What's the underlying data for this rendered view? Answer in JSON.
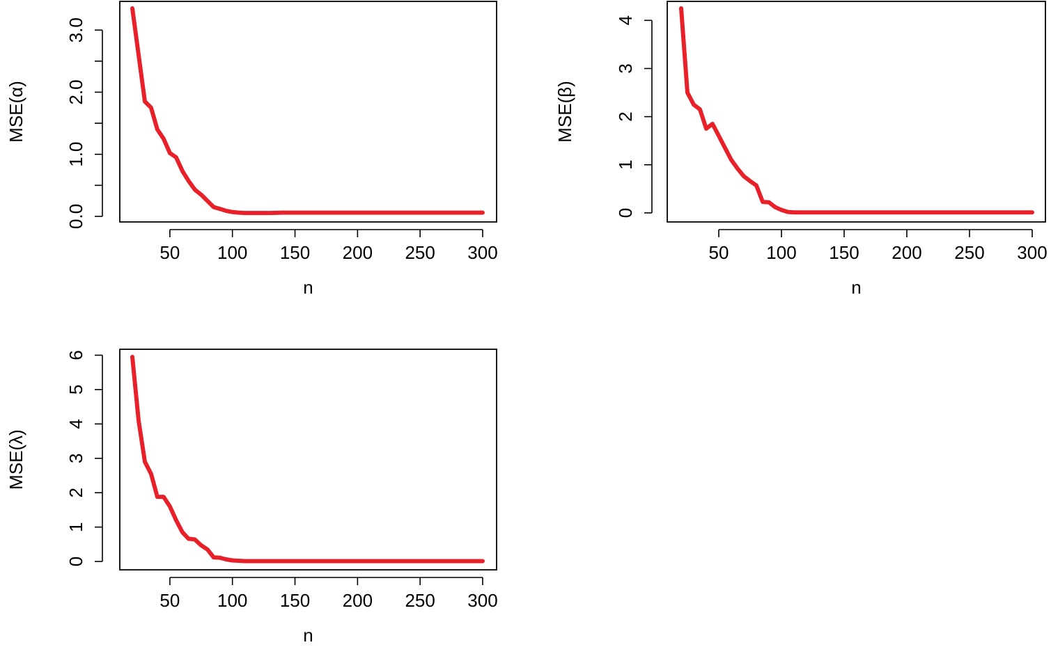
{
  "chart_data": [
    {
      "type": "line",
      "xlabel": "n",
      "ylabel": "MSE(α)",
      "xlim": [
        20,
        300
      ],
      "ylim": [
        0,
        3.35
      ],
      "xticks": [
        50,
        100,
        150,
        200,
        250,
        300
      ],
      "xtick_labels": [
        "50",
        "100",
        "150",
        "200",
        "250",
        "300"
      ],
      "yticks": [
        0,
        0.5,
        1,
        1.5,
        2,
        2.5,
        3
      ],
      "ytick_labels": [
        "0.0",
        "",
        "1.0",
        "",
        "2.0",
        "",
        "3.0"
      ],
      "color": "#e8202a",
      "series": [
        {
          "x": [
            20,
            25,
            30,
            35,
            40,
            45,
            50,
            55,
            60,
            65,
            70,
            75,
            80,
            85,
            90,
            95,
            100,
            105,
            110,
            120,
            130,
            140,
            150,
            160,
            170,
            180,
            190,
            200,
            210,
            220,
            230,
            240,
            250,
            260,
            270,
            280,
            290,
            300
          ],
          "values": [
            3.35,
            2.6,
            1.85,
            1.75,
            1.4,
            1.25,
            1.02,
            0.95,
            0.73,
            0.57,
            0.43,
            0.35,
            0.25,
            0.15,
            0.12,
            0.09,
            0.07,
            0.06,
            0.055,
            0.055,
            0.055,
            0.06,
            0.06,
            0.06,
            0.06,
            0.06,
            0.06,
            0.06,
            0.06,
            0.06,
            0.06,
            0.06,
            0.06,
            0.06,
            0.06,
            0.06,
            0.06,
            0.06
          ]
        }
      ]
    },
    {
      "type": "line",
      "xlabel": "n",
      "ylabel": "MSE(β)",
      "xlim": [
        20,
        300
      ],
      "ylim": [
        0,
        4.25
      ],
      "xticks": [
        50,
        100,
        150,
        200,
        250,
        300
      ],
      "xtick_labels": [
        "50",
        "100",
        "150",
        "200",
        "250",
        "300"
      ],
      "yticks": [
        0,
        1,
        2,
        3,
        4
      ],
      "ytick_labels": [
        "0",
        "1",
        "2",
        "3",
        "4"
      ],
      "color": "#e8202a",
      "series": [
        {
          "x": [
            20,
            25,
            30,
            35,
            40,
            45,
            50,
            55,
            60,
            65,
            70,
            75,
            80,
            85,
            90,
            95,
            100,
            105,
            110,
            120,
            130,
            140,
            150,
            160,
            170,
            180,
            190,
            200,
            210,
            220,
            230,
            240,
            250,
            260,
            270,
            280,
            290,
            300
          ],
          "values": [
            4.25,
            2.5,
            2.25,
            2.15,
            1.75,
            1.85,
            1.6,
            1.35,
            1.1,
            0.92,
            0.76,
            0.66,
            0.57,
            0.23,
            0.22,
            0.12,
            0.06,
            0.02,
            0.01,
            0.01,
            0.01,
            0.01,
            0.01,
            0.01,
            0.01,
            0.01,
            0.01,
            0.01,
            0.01,
            0.01,
            0.01,
            0.01,
            0.01,
            0.01,
            0.01,
            0.01,
            0.01,
            0.01
          ]
        }
      ]
    },
    {
      "type": "line",
      "xlabel": "n",
      "ylabel": "MSE(λ)",
      "xlim": [
        20,
        300
      ],
      "ylim": [
        0,
        5.95
      ],
      "xticks": [
        50,
        100,
        150,
        200,
        250,
        300
      ],
      "xtick_labels": [
        "50",
        "100",
        "150",
        "200",
        "250",
        "300"
      ],
      "yticks": [
        0,
        1,
        2,
        3,
        4,
        5,
        6
      ],
      "ytick_labels": [
        "0",
        "1",
        "2",
        "3",
        "4",
        "5",
        "6"
      ],
      "color": "#e8202a",
      "series": [
        {
          "x": [
            20,
            25,
            30,
            35,
            40,
            45,
            50,
            55,
            60,
            65,
            70,
            75,
            80,
            85,
            90,
            95,
            100,
            105,
            110,
            120,
            130,
            140,
            150,
            160,
            170,
            180,
            190,
            200,
            210,
            220,
            230,
            240,
            250,
            260,
            270,
            280,
            290,
            300
          ],
          "values": [
            5.95,
            4.1,
            2.9,
            2.55,
            1.88,
            1.88,
            1.6,
            1.2,
            0.85,
            0.66,
            0.64,
            0.47,
            0.35,
            0.12,
            0.11,
            0.06,
            0.03,
            0.02,
            0.01,
            0.01,
            0.01,
            0.01,
            0.01,
            0.01,
            0.01,
            0.01,
            0.01,
            0.01,
            0.01,
            0.01,
            0.01,
            0.01,
            0.01,
            0.01,
            0.01,
            0.01,
            0.01,
            0.01
          ]
        }
      ]
    }
  ]
}
